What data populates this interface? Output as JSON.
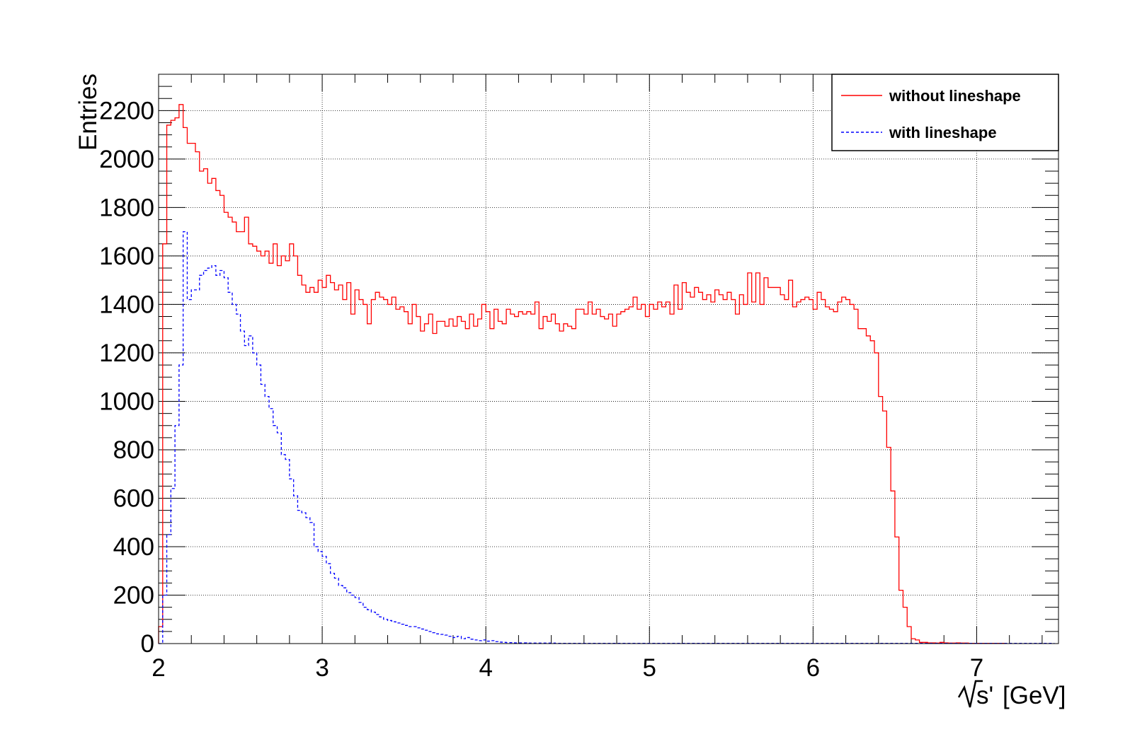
{
  "chart_data": {
    "type": "step-histogram",
    "xlabel": "[GeV]",
    "xlabel_prefix": "s'",
    "ylabel": "Entries",
    "xlim": [
      2,
      7.5
    ],
    "ylim": [
      0,
      2350
    ],
    "grid": true,
    "legend_position": "top-right",
    "x_ticks": [
      "2",
      "3",
      "4",
      "5",
      "6",
      "7"
    ],
    "y_ticks": [
      "0",
      "200",
      "400",
      "600",
      "800",
      "1000",
      "1200",
      "1400",
      "1600",
      "1800",
      "2000",
      "2200"
    ],
    "bin_width": 0.025,
    "x_start": 2.0,
    "series": [
      {
        "name": "without lineshape",
        "color": "#ff0000",
        "style": "solid",
        "values": [
          70,
          1650,
          2140,
          2160,
          2170,
          2225,
          2130,
          2065,
          2065,
          2030,
          1950,
          1960,
          1900,
          1920,
          1870,
          1850,
          1780,
          1760,
          1740,
          1700,
          1700,
          1760,
          1650,
          1640,
          1620,
          1600,
          1620,
          1570,
          1650,
          1560,
          1600,
          1580,
          1650,
          1600,
          1520,
          1480,
          1450,
          1470,
          1450,
          1500,
          1470,
          1520,
          1490,
          1460,
          1480,
          1420,
          1490,
          1360,
          1460,
          1420,
          1400,
          1320,
          1420,
          1450,
          1430,
          1420,
          1400,
          1430,
          1380,
          1390,
          1370,
          1320,
          1400,
          1350,
          1290,
          1320,
          1360,
          1280,
          1330,
          1330,
          1310,
          1340,
          1310,
          1350,
          1330,
          1300,
          1360,
          1310,
          1340,
          1400,
          1370,
          1300,
          1380,
          1330,
          1320,
          1380,
          1360,
          1350,
          1370,
          1360,
          1370,
          1360,
          1410,
          1300,
          1350,
          1330,
          1360,
          1320,
          1290,
          1320,
          1310,
          1300,
          1380,
          1380,
          1360,
          1410,
          1360,
          1380,
          1350,
          1340,
          1360,
          1310,
          1360,
          1370,
          1380,
          1390,
          1430,
          1380,
          1400,
          1350,
          1400,
          1380,
          1410,
          1390,
          1410,
          1360,
          1480,
          1380,
          1490,
          1450,
          1430,
          1470,
          1450,
          1420,
          1440,
          1410,
          1460,
          1440,
          1420,
          1450,
          1420,
          1360,
          1440,
          1400,
          1530,
          1410,
          1530,
          1400,
          1510,
          1470,
          1470,
          1470,
          1440,
          1420,
          1500,
          1390,
          1410,
          1420,
          1430,
          1420,
          1380,
          1450,
          1420,
          1390,
          1380,
          1370,
          1410,
          1430,
          1420,
          1400,
          1380,
          1300,
          1300,
          1270,
          1250,
          1200,
          1020,
          960,
          810,
          630,
          440,
          220,
          150,
          70,
          20,
          15,
          5,
          5,
          3,
          3,
          2,
          5,
          3,
          2,
          2,
          3,
          2,
          2,
          1,
          1,
          1,
          1,
          1,
          1,
          1,
          1,
          1
        ]
      },
      {
        "name": "with lineshape",
        "color": "#0000ff",
        "style": "dashed",
        "values": [
          0,
          200,
          450,
          640,
          900,
          1150,
          1700,
          1420,
          1460,
          1460,
          1520,
          1540,
          1550,
          1560,
          1520,
          1540,
          1510,
          1450,
          1400,
          1360,
          1290,
          1230,
          1270,
          1200,
          1150,
          1070,
          1020,
          970,
          900,
          870,
          780,
          760,
          680,
          610,
          550,
          540,
          520,
          500,
          400,
          380,
          360,
          330,
          290,
          270,
          240,
          230,
          210,
          200,
          190,
          170,
          150,
          140,
          130,
          120,
          110,
          100,
          95,
          90,
          85,
          80,
          75,
          70,
          70,
          65,
          60,
          55,
          50,
          45,
          40,
          38,
          35,
          30,
          25,
          30,
          20,
          25,
          18,
          15,
          12,
          15,
          10,
          12,
          8,
          6,
          5,
          4,
          4,
          3,
          3,
          3,
          2,
          2,
          2,
          2,
          2,
          2,
          2,
          1,
          1,
          1,
          1,
          1,
          1,
          1,
          1,
          1,
          1,
          1,
          1,
          1,
          1,
          1,
          1,
          1,
          1,
          1,
          1,
          1,
          1,
          1,
          1,
          1,
          1,
          1,
          1,
          1,
          1,
          1,
          1,
          1,
          1,
          1,
          1,
          1,
          1,
          1,
          1,
          1,
          1,
          1,
          1,
          1,
          1,
          1,
          1,
          1,
          1,
          1,
          1,
          1,
          1,
          1,
          1,
          1,
          1,
          1,
          1,
          1,
          1,
          1,
          1,
          1,
          1,
          1,
          1,
          1,
          1,
          1,
          1,
          1,
          1,
          1,
          1,
          1,
          1,
          1,
          1,
          1,
          1,
          1,
          1,
          1,
          1,
          1,
          1,
          1,
          1,
          1,
          1,
          1,
          1,
          1,
          1,
          1,
          1,
          1,
          1,
          1,
          1,
          1,
          1,
          1,
          1,
          1,
          1,
          1,
          1,
          1,
          1,
          1,
          1,
          1,
          1,
          1,
          1,
          1,
          1,
          1,
          1
        ]
      }
    ]
  }
}
